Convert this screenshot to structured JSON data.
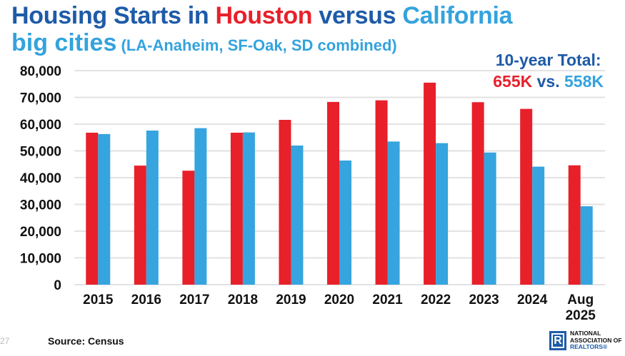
{
  "title": {
    "part1": "Housing Starts in ",
    "part2": "Houston",
    "part3": " versus ",
    "part4": "California",
    "line2_big": "big cities",
    "line2_paren": " (LA-Anaheim, SF-Oak, SD combined)"
  },
  "total": {
    "label": "10-year Total:",
    "houston": "655K",
    "vs": " vs. ",
    "california": "558K"
  },
  "footer": {
    "page_number": "27",
    "source": "Source: Census",
    "logo_line1": "NATIONAL",
    "logo_line2": "ASSOCIATION OF",
    "logo_line3": "REALTORS®",
    "logo_mark": "R"
  },
  "colors": {
    "houston": "#e8202a",
    "california": "#36a4de",
    "title_dark": "#1e5ba8"
  },
  "chart_data": {
    "type": "bar",
    "title": "Housing Starts in Houston versus California big cities (LA-Anaheim, SF-Oak, SD combined)",
    "xlabel": "",
    "ylabel": "",
    "ylim": [
      0,
      80000
    ],
    "yticks": [
      0,
      10000,
      20000,
      30000,
      40000,
      50000,
      60000,
      70000,
      80000
    ],
    "ytick_labels": [
      "0",
      "10,000",
      "20,000",
      "30,000",
      "40,000",
      "50,000",
      "60,000",
      "70,000",
      "80,000"
    ],
    "grid": true,
    "legend": "none",
    "categories": [
      "2015",
      "2016",
      "2017",
      "2018",
      "2019",
      "2020",
      "2021",
      "2022",
      "2023",
      "2024",
      "Aug\n2025"
    ],
    "category_lines": [
      [
        "2015"
      ],
      [
        "2016"
      ],
      [
        "2017"
      ],
      [
        "2018"
      ],
      [
        "2019"
      ],
      [
        "2020"
      ],
      [
        "2021"
      ],
      [
        "2022"
      ],
      [
        "2023"
      ],
      [
        "2024"
      ],
      [
        "Aug",
        "2025"
      ]
    ],
    "series": [
      {
        "name": "Houston",
        "color": "#e8202a",
        "values": [
          56800,
          44500,
          42600,
          56800,
          61600,
          68300,
          68900,
          75500,
          68200,
          65700,
          44600
        ]
      },
      {
        "name": "California big cities",
        "color": "#36a4de",
        "values": [
          56300,
          57600,
          58500,
          56900,
          52000,
          46400,
          53500,
          52900,
          49400,
          44100,
          29300
        ]
      }
    ]
  }
}
